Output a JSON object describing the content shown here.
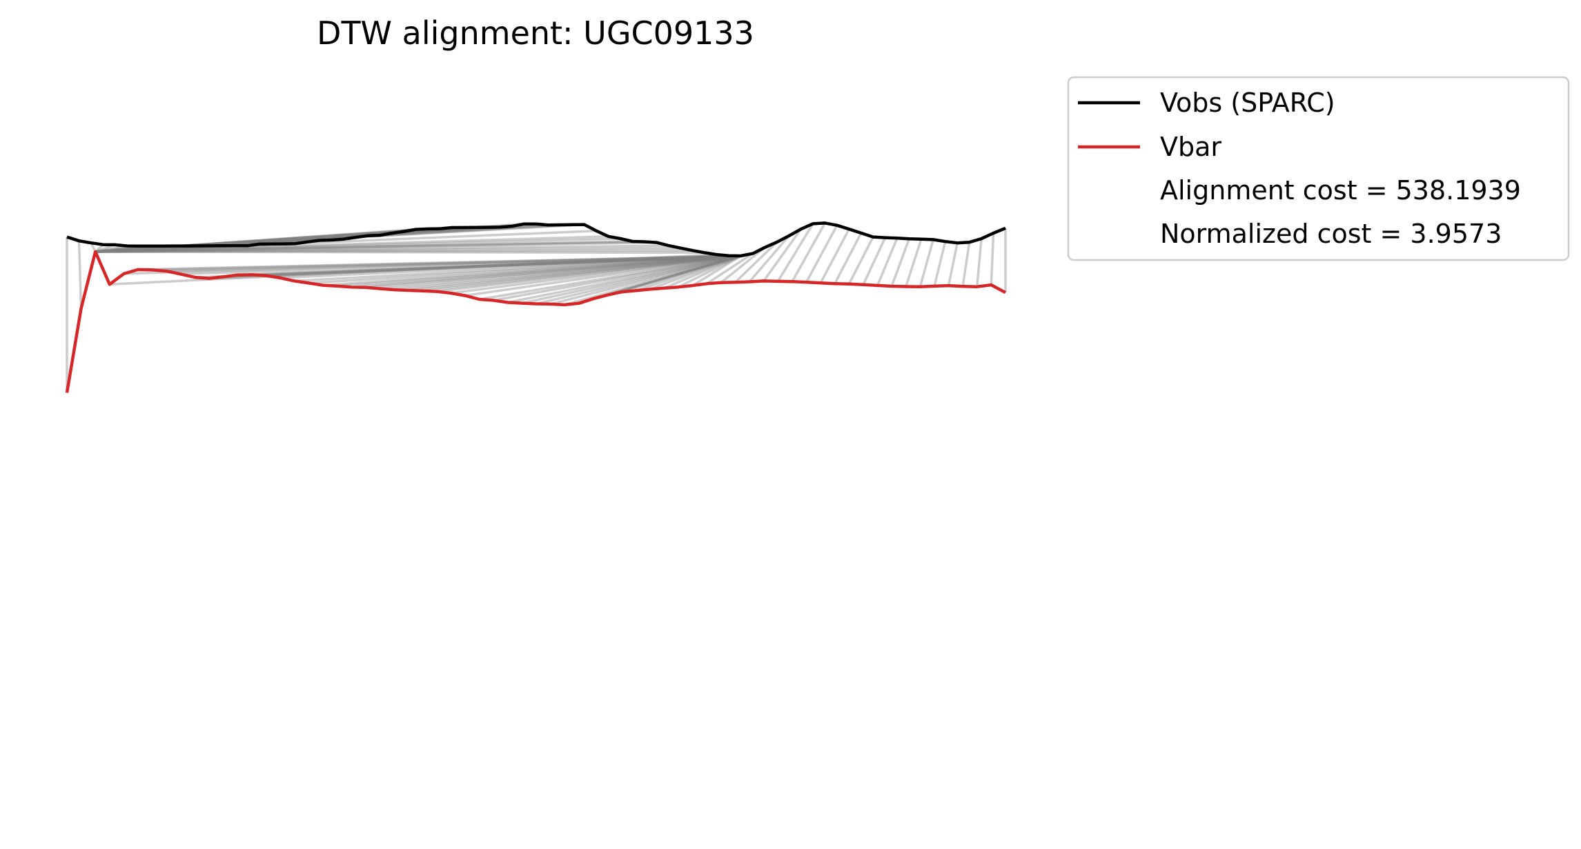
{
  "chart_data": {
    "type": "line",
    "title": "DTW alignment: UGC09133",
    "xlabel": "",
    "ylabel": "",
    "axes_visible": false,
    "grid": false,
    "legend_position": "outside-top-right",
    "colors": {
      "Vobs (SPARC)": "#000000",
      "Vbar": "#d62728",
      "alignment": "#808080"
    },
    "series": [
      {
        "name": "Vobs (SPARC)",
        "values": [
          343.6,
          349.2,
          352.2,
          354.7,
          354.9,
          356.6,
          356.8,
          356.7,
          356.7,
          356.6,
          356.6,
          356.5,
          356.4,
          356.2,
          356.2,
          356.3,
          353.9,
          353.7,
          353.6,
          353.2,
          350.7,
          348.5,
          348.0,
          346.7,
          344.1,
          341.8,
          341.1,
          338.1,
          335.6,
          332.6,
          331.9,
          331.6,
          330.0,
          329.9,
          329.8,
          329.6,
          329.4,
          328.0,
          324.7,
          324.8,
          326.2,
          326.0,
          325.8,
          325.6,
          334.7,
          342.8,
          346.0,
          350.0,
          350.5,
          351.6,
          356.1,
          359.7,
          363.2,
          366.4,
          369.1,
          370.7,
          371.0,
          367.6,
          358.8,
          351.1,
          342.0,
          332.2,
          324.4,
          323.4,
          326.7,
          332.2,
          337.9,
          343.6,
          344.6,
          345.3,
          346.2,
          346.7,
          347.4,
          350.2,
          352.2,
          351.2,
          346.1,
          338.0,
          330.8
        ]
      },
      {
        "name": "Vbar",
        "values": [
          569.4,
          446.9,
          365.0,
          412.3,
          396.9,
          390.9,
          391.4,
          393.1,
          397.4,
          402.1,
          403.6,
          401.4,
          398.7,
          398.4,
          399.6,
          402.9,
          407.4,
          410.4,
          413.6,
          414.8,
          416.3,
          416.7,
          418.5,
          420.1,
          421.0,
          421.8,
          422.6,
          425.0,
          428.6,
          434.0,
          435.5,
          438.5,
          439.6,
          440.5,
          440.9,
          441.9,
          439.8,
          433.2,
          427.8,
          423.3,
          421.4,
          419.4,
          417.7,
          416.2,
          414.0,
          411.3,
          409.7,
          409.2,
          408.5,
          407.4,
          407.9,
          408.3,
          409.1,
          410.3,
          411.2,
          411.8,
          412.8,
          413.9,
          415.0,
          415.5,
          415.7,
          414.9,
          414.1,
          415.2,
          415.7,
          413.1,
          424.2
        ]
      }
    ],
    "legend_entries": [
      {
        "label": "Vobs (SPARC)",
        "kind": "line",
        "color": "#000000"
      },
      {
        "label": "Vbar",
        "kind": "line",
        "color": "#d62728"
      },
      {
        "label": "Alignment cost = 538.1939",
        "kind": "text"
      },
      {
        "label": "Normalized cost = 3.9573",
        "kind": "text"
      }
    ],
    "alignment_cost": 538.1939,
    "normalized_cost": 3.9573
  }
}
